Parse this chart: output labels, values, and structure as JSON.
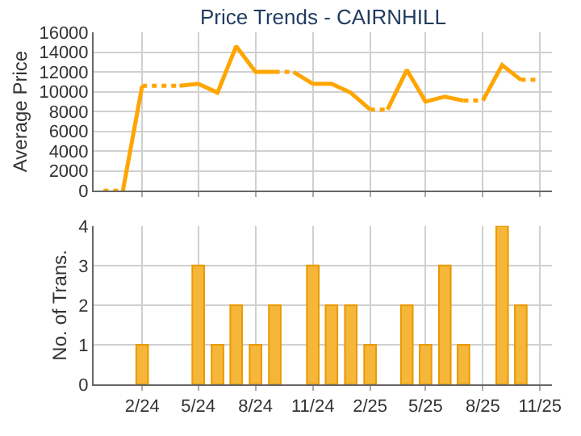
{
  "chart_data": [
    {
      "type": "line",
      "title": "Price Trends - CAIRNHILL",
      "ylabel": "Average Price",
      "xlim": [
        "2023-11-15",
        "2025-11-20"
      ],
      "xticks": [
        {
          "value": "2024-02",
          "label": null
        },
        {
          "value": "2024-05",
          "label": null
        },
        {
          "value": "2024-08",
          "label": null
        },
        {
          "value": "2024-11",
          "label": null
        },
        {
          "value": "2025-02",
          "label": null
        },
        {
          "value": "2025-05",
          "label": null
        },
        {
          "value": "2025-08",
          "label": null
        },
        {
          "value": "2025-11",
          "label": null
        }
      ],
      "ylim": [
        0,
        16000
      ],
      "yticks": [
        0,
        2000,
        4000,
        6000,
        8000,
        10000,
        12000,
        14000,
        16000
      ],
      "tick_labels": "y",
      "grid": true,
      "marker": "none",
      "series": [
        {
          "color": "#ffa500",
          "line_style": "dotted",
          "x": [
            "2023-12",
            "2024-01"
          ],
          "values": [
            0,
            0
          ]
        },
        {
          "color": "#ffa500",
          "line_style": "solid",
          "x": [
            "2024-01",
            "2024-02"
          ],
          "values": [
            0,
            10600
          ]
        },
        {
          "color": "#ffa500",
          "line_style": "dotted",
          "x": [
            "2024-02",
            "2024-03",
            "2024-04"
          ],
          "values": [
            10600,
            10600,
            10600
          ]
        },
        {
          "color": "#ffa500",
          "line_style": "solid",
          "x": [
            "2024-04",
            "2024-05",
            "2024-06",
            "2024-07",
            "2024-08",
            "2024-09"
          ],
          "values": [
            10600,
            10800,
            9900,
            14600,
            12000,
            12000
          ]
        },
        {
          "color": "#ffa500",
          "line_style": "dotted",
          "x": [
            "2024-09",
            "2024-10"
          ],
          "values": [
            12000,
            12000
          ]
        },
        {
          "color": "#ffa500",
          "line_style": "solid",
          "x": [
            "2024-10",
            "2024-11",
            "2024-12",
            "2025-01",
            "2025-02"
          ],
          "values": [
            12000,
            10800,
            10800,
            9900,
            8200
          ]
        },
        {
          "color": "#ffa500",
          "line_style": "dotted",
          "x": [
            "2025-02",
            "2025-03"
          ],
          "values": [
            8200,
            8200
          ]
        },
        {
          "color": "#ffa500",
          "line_style": "solid",
          "x": [
            "2025-03",
            "2025-04",
            "2025-05",
            "2025-06",
            "2025-07"
          ],
          "values": [
            8200,
            12200,
            9000,
            9500,
            9100
          ]
        },
        {
          "color": "#ffa500",
          "line_style": "dotted",
          "x": [
            "2025-07",
            "2025-08"
          ],
          "values": [
            9100,
            9100
          ]
        },
        {
          "color": "#ffa500",
          "line_style": "solid",
          "x": [
            "2025-08",
            "2025-09",
            "2025-10"
          ],
          "values": [
            9100,
            12700,
            11200
          ]
        },
        {
          "color": "#ffa500",
          "line_style": "dotted",
          "x": [
            "2025-10",
            "2025-11"
          ],
          "values": [
            11200,
            11200
          ]
        }
      ]
    },
    {
      "type": "bar",
      "ylabel": "No. of Trans.",
      "xlim": [
        "2023-11-15",
        "2025-11-20"
      ],
      "xticks": [
        {
          "value": "2024-02",
          "label": "2/24"
        },
        {
          "value": "2024-05",
          "label": "5/24"
        },
        {
          "value": "2024-08",
          "label": "8/24"
        },
        {
          "value": "2024-11",
          "label": "11/24"
        },
        {
          "value": "2025-02",
          "label": "2/25"
        },
        {
          "value": "2025-05",
          "label": "5/25"
        },
        {
          "value": "2025-08",
          "label": "8/25"
        },
        {
          "value": "2025-11",
          "label": "11/25"
        }
      ],
      "ylim": [
        0,
        4
      ],
      "yticks": [
        0,
        1,
        2,
        3,
        4
      ],
      "grid": true,
      "x": [
        "2024-02",
        "2024-05",
        "2024-06",
        "2024-07",
        "2024-08",
        "2024-09",
        "2024-11",
        "2024-12",
        "2025-01",
        "2025-02",
        "2025-04",
        "2025-05",
        "2025-06",
        "2025-07",
        "2025-09",
        "2025-10"
      ],
      "series": [
        {
          "color": "#f5b63a",
          "values": [
            1,
            3,
            1,
            2,
            1,
            2,
            3,
            2,
            2,
            1,
            2,
            1,
            3,
            1,
            4,
            2
          ]
        }
      ]
    }
  ]
}
